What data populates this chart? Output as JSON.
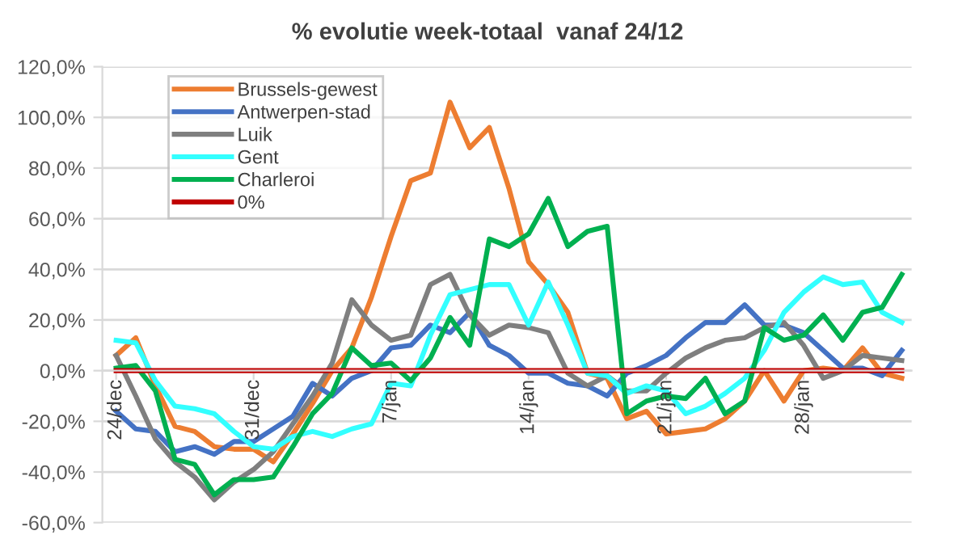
{
  "chart_data": {
    "type": "line",
    "title": "% evolutie week-totaal  vanaf 24/12",
    "categories": [
      "24/dec",
      null,
      null,
      null,
      null,
      null,
      null,
      "31/dec",
      null,
      null,
      null,
      null,
      null,
      null,
      "7/jan",
      null,
      null,
      null,
      null,
      null,
      null,
      "14/jan",
      null,
      null,
      null,
      null,
      null,
      null,
      "21/jan",
      null,
      null,
      null,
      null,
      null,
      null,
      "28/jan",
      null,
      null,
      null,
      null,
      null
    ],
    "series": [
      {
        "name": "Brussels-gewest",
        "color": "#ed7d31",
        "values": [
          6,
          13,
          -6,
          -22,
          -24,
          -30,
          -31,
          -31,
          -36,
          -25,
          -13,
          0,
          9,
          29,
          53,
          75,
          78,
          106,
          88,
          96,
          72,
          43,
          34,
          23,
          -1,
          -3,
          -19,
          -16,
          -25,
          -24,
          -23,
          -19,
          -12,
          0,
          -12,
          0,
          1,
          0,
          9,
          -1,
          -3
        ]
      },
      {
        "name": "Antwerpen-stad",
        "color": "#4472c4",
        "values": [
          -16,
          -23,
          -24,
          -32,
          -30,
          -33,
          -28,
          -28,
          -23,
          -18,
          -5,
          -10,
          -3,
          0,
          9,
          10,
          18,
          15,
          23,
          10,
          6,
          -1,
          -1,
          -5,
          -6,
          -10,
          -1,
          2,
          6,
          13,
          19,
          19,
          26,
          18,
          18,
          15,
          8,
          1,
          1,
          -2,
          8
        ]
      },
      {
        "name": "Luik",
        "color": "#7f7f7f",
        "values": [
          6,
          -10,
          -27,
          -36,
          -42,
          -51,
          -44,
          -39,
          -32,
          -21,
          -10,
          3,
          28,
          18,
          12,
          14,
          34,
          38,
          22,
          14,
          18,
          17,
          15,
          -1,
          -6,
          -2,
          -8,
          -8,
          -1,
          5,
          9,
          12,
          13,
          17,
          19,
          10,
          -3,
          0,
          6,
          5,
          4
        ]
      },
      {
        "name": "Gent",
        "color": "#33ffff",
        "values": [
          12,
          11,
          -4,
          -14,
          -15,
          -17,
          -24,
          -30,
          -31,
          -26,
          -24,
          -26,
          -23,
          -21,
          -5,
          -6,
          14,
          30,
          32,
          34,
          34,
          18,
          35,
          18,
          -1,
          -2,
          -9,
          -6,
          -8,
          -17,
          -14,
          -9,
          -3,
          8,
          23,
          31,
          37,
          34,
          35,
          23,
          19
        ]
      },
      {
        "name": "Charleroi",
        "color": "#00b050",
        "values": [
          1,
          2,
          -8,
          -35,
          -37,
          -49,
          -43,
          -43,
          -42,
          -30,
          -17,
          -9,
          9,
          2,
          3,
          -4,
          5,
          21,
          10,
          52,
          49,
          54,
          68,
          49,
          55,
          57,
          -17,
          -12,
          -10,
          -11,
          -3,
          -17,
          -12,
          17,
          12,
          14,
          22,
          12,
          23,
          25,
          38
        ]
      },
      {
        "name": "0%",
        "color": "#c00000",
        "values": [
          0,
          0,
          0,
          0,
          0,
          0,
          0,
          0,
          0,
          0,
          0,
          0,
          0,
          0,
          0,
          0,
          0,
          0,
          0,
          0,
          0,
          0,
          0,
          0,
          0,
          0,
          0,
          0,
          0,
          0,
          0,
          0,
          0,
          0,
          0,
          0,
          0,
          0,
          0,
          0,
          0
        ]
      }
    ],
    "ylim": [
      -60,
      120
    ],
    "yticks": [
      {
        "value": -60,
        "label": "-60,0%"
      },
      {
        "value": -40,
        "label": "-40,0%"
      },
      {
        "value": -20,
        "label": "-20,0%"
      },
      {
        "value": 0,
        "label": "0,0%"
      },
      {
        "value": 20,
        "label": "20,0%"
      },
      {
        "value": 40,
        "label": "40,0%"
      },
      {
        "value": 60,
        "label": "60,0%"
      },
      {
        "value": 80,
        "label": "80,0%"
      },
      {
        "value": 100,
        "label": "100,0%"
      },
      {
        "value": 120,
        "label": "120,0%"
      }
    ],
    "grid": "y",
    "legend": "top left",
    "marker": "none",
    "line_style": "solid"
  }
}
